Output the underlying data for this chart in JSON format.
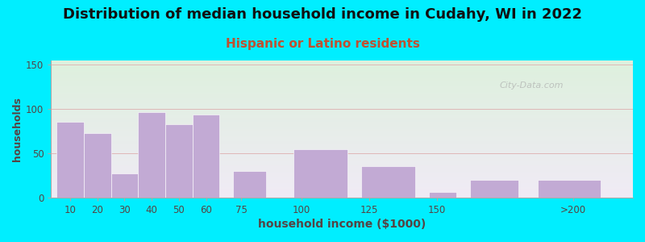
{
  "title": "Distribution of median household income in Cudahy, WI in 2022",
  "subtitle": "Hispanic or Latino residents",
  "xlabel": "household income ($1000)",
  "ylabel": "households",
  "bar_values": [
    86,
    73,
    27,
    97,
    83,
    94,
    30,
    55,
    35,
    6,
    20,
    20
  ],
  "bar_lefts": [
    0,
    10,
    20,
    30,
    40,
    50,
    65,
    87,
    112,
    137,
    152,
    177
  ],
  "bar_widths": [
    10,
    10,
    10,
    10,
    10,
    10,
    12,
    20,
    20,
    10,
    18,
    23
  ],
  "bar_color": "#c2aad4",
  "tick_positions": [
    5,
    15,
    25,
    35,
    45,
    55,
    68,
    90,
    115,
    140,
    190
  ],
  "tick_labels": [
    "10",
    "20",
    "30",
    "40",
    "50",
    "60",
    "75",
    "100",
    "125",
    "150",
    ">200"
  ],
  "xlim": [
    -2,
    212
  ],
  "ylim": [
    0,
    155
  ],
  "yticks": [
    0,
    50,
    100,
    150
  ],
  "background_outer": "#00eeff",
  "bg_top_color": "#ddf0dd",
  "bg_bottom_color": "#f0eaf5",
  "grid_color": "#ddaaaa",
  "title_fontsize": 13,
  "subtitle_fontsize": 11,
  "subtitle_color": "#c05030",
  "title_color": "#111111",
  "watermark": "City-Data.com",
  "axis_label_color": "#554444",
  "tick_color": "#554444"
}
